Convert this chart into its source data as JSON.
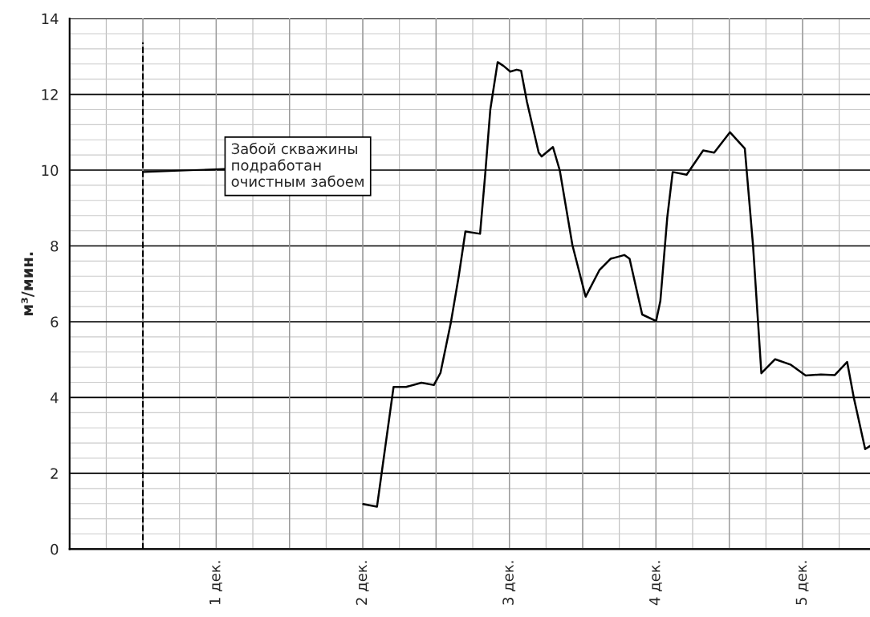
{
  "chart_data": {
    "type": "line",
    "ylabel": "м³/мин.",
    "x": [
      2.003,
      2.097,
      2.21,
      2.296,
      2.4,
      2.485,
      2.53,
      2.6,
      2.655,
      2.7,
      2.8,
      2.834,
      2.87,
      2.92,
      2.96,
      3.006,
      3.05,
      3.08,
      3.12,
      3.2,
      3.22,
      3.297,
      3.344,
      3.43,
      3.52,
      3.614,
      3.69,
      3.784,
      3.82,
      3.906,
      4.001,
      4.03,
      4.077,
      4.114,
      4.209,
      4.322,
      4.397,
      4.505,
      4.606,
      4.662,
      4.719,
      4.813,
      4.917,
      5.021,
      5.125,
      5.219,
      5.304,
      5.35,
      5.427,
      5.46
    ],
    "series": [
      {
        "color": "#000000",
        "values": [
          1.19,
          1.12,
          4.28,
          4.28,
          4.39,
          4.33,
          4.65,
          5.96,
          7.21,
          8.38,
          8.32,
          9.84,
          11.6,
          12.85,
          12.75,
          12.6,
          12.65,
          12.62,
          11.8,
          10.46,
          10.36,
          10.61,
          9.99,
          8.02,
          6.66,
          7.36,
          7.66,
          7.76,
          7.66,
          6.19,
          6.02,
          6.55,
          8.75,
          9.95,
          9.88,
          10.52,
          10.46,
          11.0,
          10.57,
          8.02,
          4.64,
          5.01,
          4.87,
          4.58,
          4.61,
          4.59,
          4.94,
          3.99,
          2.64,
          2.72
        ]
      }
    ],
    "xlim": [
      0,
      5.46
    ],
    "xticks": [
      {
        "value": 0,
        "label": null
      },
      {
        "value": 0.5,
        "label": null
      },
      {
        "value": 1,
        "label": "1 дек."
      },
      {
        "value": 1.5,
        "label": null
      },
      {
        "value": 2,
        "label": "2 дек."
      },
      {
        "value": 2.5,
        "label": null
      },
      {
        "value": 3,
        "label": "3 дек."
      },
      {
        "value": 3.5,
        "label": null
      },
      {
        "value": 4,
        "label": "4 дек."
      },
      {
        "value": 4.5,
        "label": null
      },
      {
        "value": 5,
        "label": "5 дек."
      }
    ],
    "ylim": [
      0,
      14
    ],
    "yticks": [
      0,
      2,
      4,
      6,
      8,
      10,
      12,
      14
    ],
    "grid": true,
    "line_style": "solid",
    "marker": "none",
    "ref_lines": [
      {
        "axis": "x",
        "value": 0.5,
        "label": null,
        "color": "#000000",
        "line_style": "dashed"
      }
    ],
    "annotations": [
      {
        "text": "Забой скважины\nподработан\nочистным забоем",
        "x": 0.5,
        "y": 9.95
      }
    ]
  }
}
